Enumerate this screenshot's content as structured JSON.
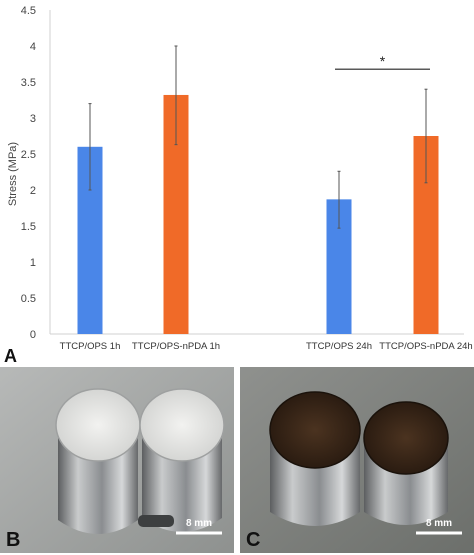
{
  "chart_data": {
    "type": "bar",
    "categories": [
      "TTCP/OPS 1h",
      "TTCP/OPS-nPDA 1h",
      "TTCP/OPS 24h",
      "TTCP/OPS-nPDA 24h"
    ],
    "values": [
      2.6,
      3.32,
      1.87,
      2.75
    ],
    "errors": [
      {
        "low": 2.0,
        "high": 3.2
      },
      {
        "low": 2.63,
        "high": 4.0
      },
      {
        "low": 1.47,
        "high": 2.26
      },
      {
        "low": 2.1,
        "high": 3.4
      }
    ],
    "bar_colors": [
      "#4a86e8",
      "#f06a28",
      "#4a86e8",
      "#f06a28"
    ],
    "ylabel": "Stress (MPa)",
    "xlabel": "",
    "ylim": [
      0,
      4.5
    ],
    "yticks": [
      "0",
      "0.5",
      "1",
      "1.5",
      "2",
      "2.5",
      "3",
      "3.5",
      "4",
      "4.5"
    ],
    "grid": false,
    "annotations": [
      {
        "text": "*",
        "between": [
          "TTCP/OPS 24h",
          "TTCP/OPS-nPDA 24h"
        ]
      }
    ]
  },
  "panels": {
    "a_label": "A",
    "b_label": "B",
    "c_label": "C"
  },
  "photos": {
    "b_scale": "8 mm",
    "c_scale": "8 mm"
  }
}
